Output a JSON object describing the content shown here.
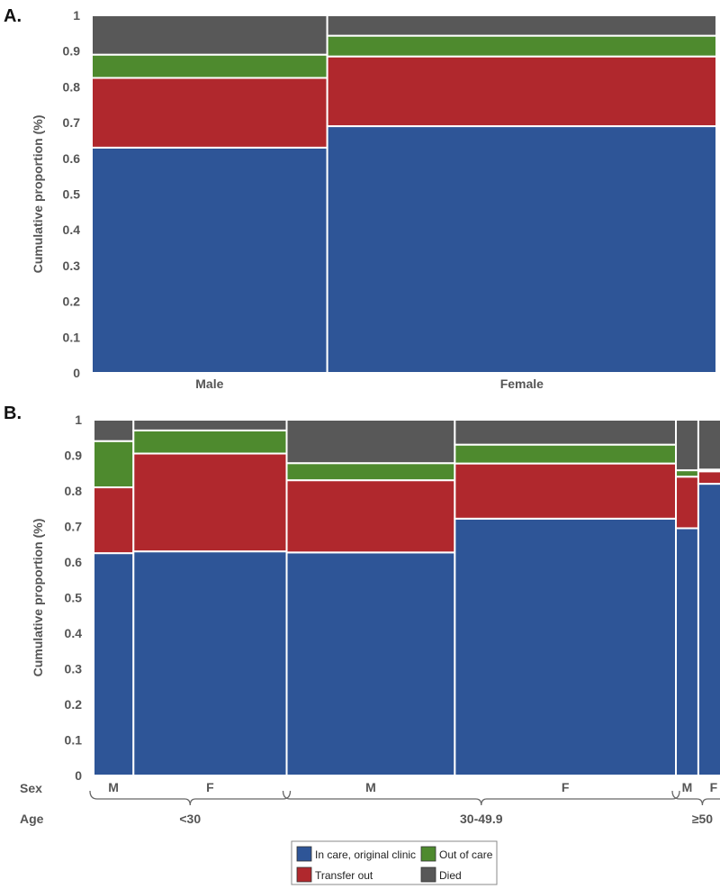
{
  "legend": [
    {
      "label": "In care, original clinic",
      "color": "#2E5597"
    },
    {
      "label": "Transfer out",
      "color": "#B0282D"
    },
    {
      "label": "Out of care",
      "color": "#4E8A2E"
    },
    {
      "label": "Died",
      "color": "#585858"
    }
  ],
  "chart_data": [
    {
      "type": "mosaic",
      "panel_label": "A.",
      "ylabel": "Cumulative proportion (%)",
      "ylim": [
        0,
        1
      ],
      "yticks": [
        "0",
        "0.1",
        "0.2",
        "0.3",
        "0.4",
        "0.5",
        "0.6",
        "0.7",
        "0.8",
        "0.9",
        "1"
      ],
      "columns": [
        {
          "label": "Male",
          "width_share": 0.377,
          "cumulative": [
            0.63,
            0.825,
            0.89,
            1.0
          ]
        },
        {
          "label": "Female",
          "width_share": 0.623,
          "cumulative": [
            0.69,
            0.885,
            0.943,
            1.0
          ]
        }
      ]
    },
    {
      "type": "mosaic",
      "panel_label": "B.",
      "ylabel": "Cumulative proportion (%)",
      "ylim": [
        0,
        1
      ],
      "yticks": [
        "0",
        "0.1",
        "0.2",
        "0.3",
        "0.4",
        "0.5",
        "0.6",
        "0.7",
        "0.8",
        "0.9",
        "1"
      ],
      "row_labels": [
        "Sex",
        "Age"
      ],
      "columns": [
        {
          "sex": "M",
          "width_share": 0.064,
          "cumulative": [
            0.625,
            0.81,
            0.94,
            1.0
          ]
        },
        {
          "sex": "F",
          "width_share": 0.246,
          "cumulative": [
            0.63,
            0.905,
            0.97,
            1.0
          ]
        },
        {
          "sex": "M",
          "width_share": 0.27,
          "cumulative": [
            0.627,
            0.83,
            0.878,
            1.0
          ]
        },
        {
          "sex": "F",
          "width_share": 0.355,
          "cumulative": [
            0.722,
            0.877,
            0.93,
            1.0
          ]
        },
        {
          "sex": "M",
          "width_share": 0.036,
          "cumulative": [
            0.695,
            0.84,
            0.858,
            1.0
          ]
        },
        {
          "sex": "F",
          "width_share": 0.049,
          "cumulative": [
            0.82,
            0.855,
            0.86,
            1.0
          ]
        }
      ],
      "age_groups": [
        {
          "label": "<30",
          "columns": [
            0,
            1
          ]
        },
        {
          "label": "30-49.9",
          "columns": [
            2,
            3
          ]
        },
        {
          "label": "≥50",
          "columns": [
            4,
            5
          ]
        }
      ]
    }
  ]
}
